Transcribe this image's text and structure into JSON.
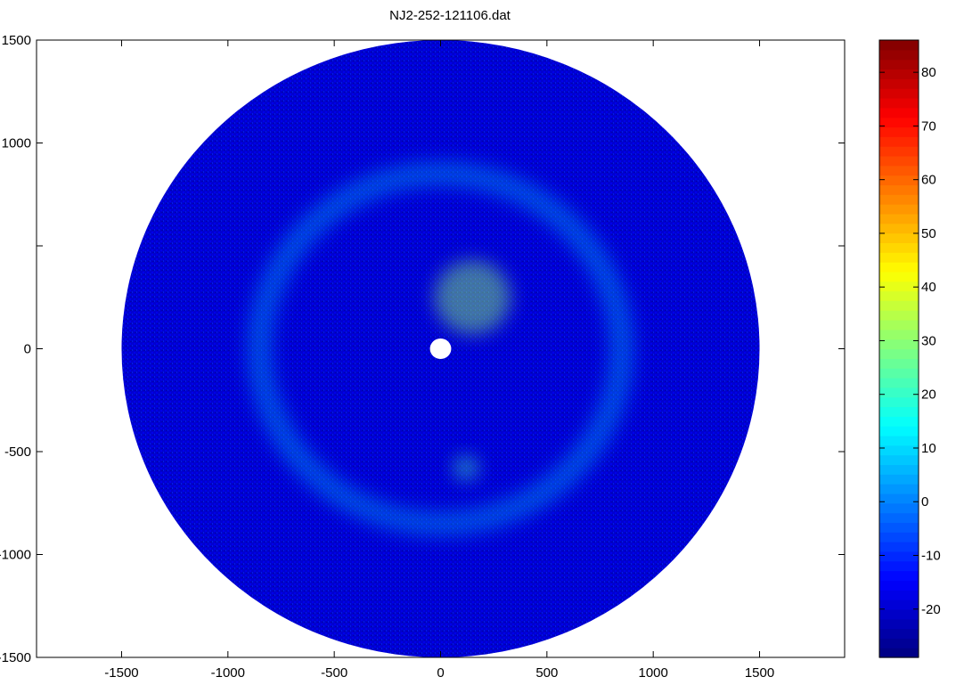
{
  "chart_data": {
    "type": "heatmap",
    "subtype": "polar-disk",
    "title": "NJ2-252-121106.dat",
    "xlabel": "",
    "ylabel": "",
    "xlim": [
      -1900,
      1900
    ],
    "ylim": [
      -1500,
      1500
    ],
    "x_ticks": [
      -1500,
      -1000,
      -500,
      0,
      500,
      1000,
      1500
    ],
    "x_tick_labels": [
      "-1500",
      "-1000",
      "-500",
      "0",
      "500",
      "1000",
      "1500"
    ],
    "y_ticks": [
      1500,
      1000,
      0,
      -500,
      -1000,
      -1500
    ],
    "y_tick_labels": [
      "1500",
      "1000",
      "0",
      "-500",
      "-1000",
      "-1500"
    ],
    "y_minor_ticks": [
      500
    ],
    "disk": {
      "center": [
        0,
        0
      ],
      "outer_radius": 1500,
      "inner_radius": 50
    },
    "features": [
      {
        "kind": "ring",
        "radius": 850,
        "level": 8
      },
      {
        "kind": "blob",
        "center": [
          150,
          250
        ],
        "radius": 180,
        "level": 30
      },
      {
        "kind": "blob",
        "center": [
          120,
          -580
        ],
        "radius": 60,
        "level": 22
      }
    ],
    "background_level": -20,
    "colorbar": {
      "colormap": "jet",
      "clim": [
        -29,
        86
      ],
      "ticks": [
        -20,
        -10,
        0,
        10,
        20,
        30,
        40,
        50,
        60,
        70,
        80
      ],
      "tick_labels": [
        "-20",
        "-10",
        "0",
        "10",
        "20",
        "30",
        "40",
        "50",
        "60",
        "70",
        "80"
      ]
    },
    "grid": false,
    "legend": "none"
  }
}
